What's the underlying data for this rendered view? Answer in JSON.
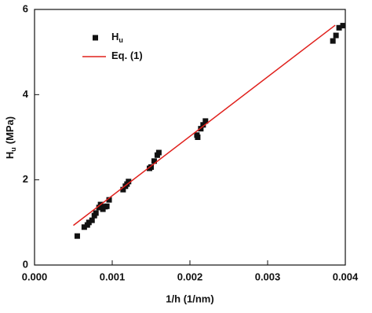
{
  "chart_data": {
    "type": "scatter",
    "xlabel": "1/h (1/nm)",
    "ylabel": "H",
    "ylabel_subscript": "u",
    "ylabel_unit": "(MPa)",
    "xlim": [
      0,
      0.004
    ],
    "xticks": [
      {
        "value": 0,
        "label": "0.000"
      },
      {
        "value": 0.001,
        "label": "0.001"
      },
      {
        "value": 0.002,
        "label": "0.002"
      },
      {
        "value": 0.003,
        "label": "0.003"
      },
      {
        "value": 0.004,
        "label": "0.004"
      }
    ],
    "ylim": [
      0,
      6
    ],
    "yticks": [
      0,
      2,
      4,
      6
    ],
    "legend": "upper-left",
    "series": [
      {
        "name": "H",
        "subscript": "u",
        "kind": "scatter",
        "color": "#111111",
        "x": [
          0.00055,
          0.00064,
          0.00068,
          0.0007,
          0.00074,
          0.00077,
          0.00079,
          0.00083,
          0.00085,
          0.00088,
          0.00091,
          0.00093,
          0.00096,
          0.00114,
          0.00117,
          0.00119,
          0.00121,
          0.00148,
          0.0015,
          0.00154,
          0.00158,
          0.0016,
          0.00209,
          0.0021,
          0.00214,
          0.00217,
          0.0022,
          0.00384,
          0.00388,
          0.00392,
          0.00397
        ],
        "values": [
          0.68,
          0.89,
          0.94,
          1.0,
          1.05,
          1.16,
          1.22,
          1.35,
          1.42,
          1.31,
          1.37,
          1.38,
          1.53,
          1.77,
          1.85,
          1.9,
          1.96,
          2.27,
          2.3,
          2.44,
          2.58,
          2.64,
          3.05,
          3.0,
          3.2,
          3.29,
          3.38,
          5.26,
          5.39,
          5.57,
          5.62
        ]
      },
      {
        "name": "Eq. (1)",
        "kind": "line",
        "color": "#e0201c",
        "x": [
          0.0005,
          0.00387
        ],
        "values": [
          0.93,
          5.63
        ]
      }
    ]
  }
}
